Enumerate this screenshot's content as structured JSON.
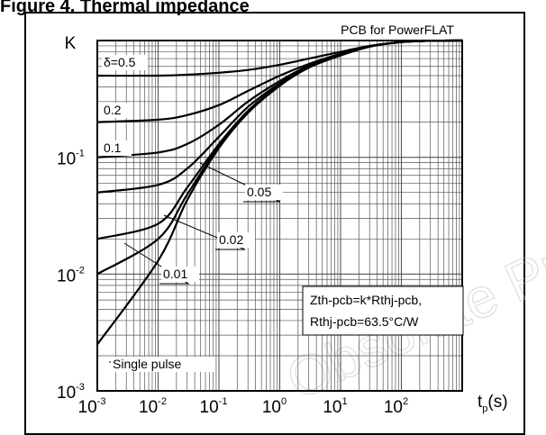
{
  "figure_title": "Figure 4. Thermal impedance",
  "watermark": "Obsolete Product(s)",
  "chart_data": {
    "type": "line",
    "title": "PCB for PowerFLAT",
    "x_scale": "log",
    "y_scale": "log",
    "xlim": [
      0.001,
      1000
    ],
    "ylim": [
      0.001,
      1
    ],
    "grid": true,
    "x_tick_labels": [
      {
        "base": "10",
        "exp": "-3",
        "value": 0.001
      },
      {
        "base": "10",
        "exp": "-2",
        "value": 0.01
      },
      {
        "base": "10",
        "exp": "-1",
        "value": 0.1
      },
      {
        "base": "10",
        "exp": "0",
        "value": 1
      },
      {
        "base": "10",
        "exp": "1",
        "value": 10
      },
      {
        "base": "10",
        "exp": "2",
        "value": 100
      }
    ],
    "y_tick_labels": [
      {
        "base": "10",
        "exp": "-3",
        "value": 0.001
      },
      {
        "base": "10",
        "exp": "-2",
        "value": 0.01
      },
      {
        "base": "10",
        "exp": "-1",
        "value": 0.1
      }
    ],
    "ylabel": "K",
    "xlabel_base": "t",
    "xlabel_sub": "p",
    "xlabel_unit": "(s)",
    "annotation_lines": [
      "Zth-pcb=k*Rthj-pcb,",
      "Rthj-pcb=63.5°C/W"
    ],
    "series": [
      {
        "name": "δ=0.5",
        "x": [
          0.001,
          0.01,
          0.03,
          0.1,
          0.3,
          1,
          3,
          10,
          30,
          100,
          300,
          1000
        ],
        "y": [
          0.5,
          0.5,
          0.51,
          0.53,
          0.56,
          0.62,
          0.7,
          0.8,
          0.9,
          0.97,
          0.995,
          1.0
        ]
      },
      {
        "name": "0.2",
        "x": [
          0.001,
          0.01,
          0.03,
          0.1,
          0.3,
          1,
          3,
          10,
          30,
          100,
          300,
          1000
        ],
        "y": [
          0.2,
          0.21,
          0.23,
          0.28,
          0.37,
          0.5,
          0.63,
          0.77,
          0.89,
          0.97,
          0.995,
          1.0
        ]
      },
      {
        "name": "0.1",
        "x": [
          0.001,
          0.01,
          0.03,
          0.1,
          0.3,
          1,
          3,
          10,
          30,
          100,
          300,
          1000
        ],
        "y": [
          0.1,
          0.11,
          0.13,
          0.19,
          0.3,
          0.45,
          0.61,
          0.76,
          0.89,
          0.97,
          0.995,
          1.0
        ]
      },
      {
        "name": "0.05",
        "x": [
          0.001,
          0.01,
          0.03,
          0.1,
          0.3,
          1,
          3,
          10,
          30,
          100,
          300,
          1000
        ],
        "y": [
          0.05,
          0.058,
          0.08,
          0.15,
          0.27,
          0.43,
          0.6,
          0.76,
          0.89,
          0.97,
          0.995,
          1.0
        ]
      },
      {
        "name": "0.02",
        "x": [
          0.001,
          0.01,
          0.03,
          0.1,
          0.3,
          1,
          3,
          10,
          30,
          100,
          300,
          1000
        ],
        "y": [
          0.02,
          0.027,
          0.055,
          0.13,
          0.25,
          0.42,
          0.59,
          0.75,
          0.89,
          0.97,
          0.995,
          1.0
        ]
      },
      {
        "name": "0.01",
        "x": [
          0.001,
          0.01,
          0.03,
          0.1,
          0.3,
          1,
          3,
          10,
          30,
          100,
          300,
          1000
        ],
        "y": [
          0.01,
          0.02,
          0.048,
          0.125,
          0.245,
          0.42,
          0.59,
          0.75,
          0.89,
          0.97,
          0.995,
          1.0
        ]
      },
      {
        "name": "Single pulse",
        "x": [
          0.001,
          0.01,
          0.03,
          0.1,
          0.3,
          1,
          3,
          10,
          30,
          100,
          300,
          1000
        ],
        "y": [
          0.0025,
          0.013,
          0.043,
          0.12,
          0.24,
          0.41,
          0.585,
          0.745,
          0.885,
          0.97,
          0.995,
          1.0
        ]
      }
    ]
  }
}
